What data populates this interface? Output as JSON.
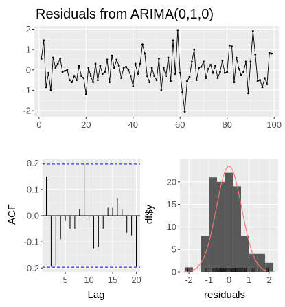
{
  "chart_data": [
    {
      "type": "line",
      "title": "Residuals from ARIMA(0,1,0)",
      "xlabel": "",
      "ylabel": "",
      "xlim": [
        -2,
        102
      ],
      "ylim": [
        -2.3,
        2.15
      ],
      "xticks": [
        0,
        20,
        40,
        60,
        80,
        100
      ],
      "yticks": [
        -2,
        -1,
        0,
        1,
        2
      ],
      "grid": true,
      "point_markers": true,
      "x": [
        1,
        2,
        3,
        4,
        5,
        6,
        7,
        8,
        9,
        10,
        11,
        12,
        13,
        14,
        15,
        16,
        17,
        18,
        19,
        20,
        21,
        22,
        23,
        24,
        25,
        26,
        27,
        28,
        29,
        30,
        31,
        32,
        33,
        34,
        35,
        36,
        37,
        38,
        39,
        40,
        41,
        42,
        43,
        44,
        45,
        46,
        47,
        48,
        49,
        50,
        51,
        52,
        53,
        54,
        55,
        56,
        57,
        58,
        59,
        60,
        61,
        62,
        63,
        64,
        65,
        66,
        67,
        68,
        69,
        70,
        71,
        72,
        73,
        74,
        75,
        76,
        77,
        78,
        79,
        80,
        81,
        82,
        83,
        84,
        85,
        86,
        87,
        88,
        89,
        90,
        91,
        92,
        93,
        94,
        95,
        96,
        97,
        98,
        99
      ],
      "values": [
        0.55,
        1.45,
        -0.85,
        -0.15,
        -1.0,
        0.6,
        0.1,
        0.3,
        0.55,
        -0.1,
        -0.05,
        0.0,
        -0.5,
        -0.6,
        -0.3,
        -0.5,
        0.2,
        -0.3,
        -0.4,
        -1.2,
        0.1,
        -0.3,
        -0.6,
        0.3,
        -0.5,
        0.2,
        -0.2,
        -0.1,
        0.5,
        -0.6,
        0.7,
        0.1,
        0.5,
        0.2,
        -0.4,
        0.1,
        0.15,
        0.0,
        -0.3,
        -0.8,
        0.3,
        -0.2,
        0.3,
        1.25,
        0.8,
        -0.3,
        -0.6,
        0.1,
        -0.3,
        -0.5,
        0.55,
        -1.0,
        0.1,
        -0.3,
        0.6,
        -0.55,
        1.45,
        -0.2,
        1.95,
        -0.15,
        -1.1,
        -2.05,
        -0.55,
        -0.35,
        0.4,
        1.0,
        -0.5,
        0.1,
        0.15,
        0.4,
        -0.4,
        0.05,
        0.25,
        -0.15,
        0.2,
        -0.4,
        -0.1,
        0.45,
        -0.15,
        -0.1,
        1.2,
        1.15,
        -0.6,
        0.6,
        0.05,
        -0.25,
        -0.1,
        0.4,
        -1.15,
        0.4,
        1.9,
        0.75,
        -0.55,
        -0.5,
        -0.85,
        -0.4,
        -0.7,
        0.85,
        0.8
      ]
    },
    {
      "type": "bar",
      "title": "",
      "xlabel": "Lag",
      "ylabel": "ACF",
      "xlim": [
        0.2,
        20.8
      ],
      "ylim": [
        -0.215,
        0.215
      ],
      "xticks": [
        5,
        10,
        15,
        20
      ],
      "yticks": [
        -0.2,
        -0.1,
        0.0,
        0.1,
        0.2
      ],
      "confidence_band": [
        -0.197,
        0.197
      ],
      "grid": true,
      "categories": [
        1,
        2,
        3,
        4,
        5,
        6,
        7,
        8,
        9,
        10,
        11,
        12,
        13,
        14,
        15,
        16,
        17,
        18,
        19,
        20
      ],
      "values": [
        0.15,
        -0.195,
        -0.195,
        -0.09,
        -0.02,
        -0.05,
        -0.05,
        0.025,
        0.198,
        -0.055,
        -0.125,
        -0.12,
        -0.05,
        0.03,
        0.03,
        0.065,
        0.025,
        -0.065,
        -0.075,
        -0.195
      ]
    },
    {
      "type": "bar",
      "subtype": "histogram",
      "title": "",
      "xlabel": "residuals",
      "ylabel": "df$y",
      "xlim": [
        -2.45,
        2.45
      ],
      "ylim": [
        0,
        25
      ],
      "xticks": [
        -2,
        -1,
        0,
        1,
        2
      ],
      "yticks": [
        0,
        5,
        10,
        15,
        20
      ],
      "grid": true,
      "bin_width": 0.4,
      "bins_left": [
        -2.2,
        -1.8,
        -1.4,
        -1.0,
        -0.6,
        -0.2,
        0.2,
        0.6,
        1.0,
        1.4,
        1.8
      ],
      "values": [
        1,
        0,
        8,
        21,
        20,
        22,
        19,
        8,
        4,
        4,
        2
      ],
      "normal_curve": {
        "mean": 0.0,
        "sd": 0.63,
        "peak": 23.5,
        "color": "#F8766D"
      },
      "rug": true
    }
  ],
  "colors": {
    "panel_bg": "#EBEBEB",
    "grid_major": "#FFFFFF",
    "line": "#000000",
    "bar_fill": "#595959",
    "band": "#0000FF",
    "curve": "#F8766D",
    "tick_text": "#4D4D4D"
  }
}
